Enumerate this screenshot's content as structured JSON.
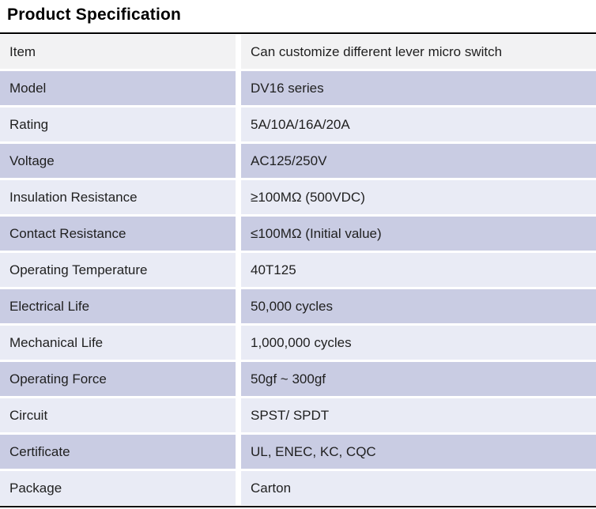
{
  "page": {
    "title": "Product Specification"
  },
  "table": {
    "columns": [
      "label",
      "value"
    ],
    "rows": [
      {
        "label": "Item",
        "value": "Can customize different lever micro switch"
      },
      {
        "label": "Model",
        "value": "DV16 series"
      },
      {
        "label": "Rating",
        "value": "5A/10A/16A/20A"
      },
      {
        "label": "Voltage",
        "value": "AC125/250V"
      },
      {
        "label": "Insulation Resistance",
        "value": "≥100MΩ (500VDC)"
      },
      {
        "label": "Contact Resistance",
        "value": "≤100MΩ (Initial value)"
      },
      {
        "label": "Operating Temperature",
        "value": "40T125"
      },
      {
        "label": "Electrical Life",
        "value": "50,000 cycles"
      },
      {
        "label": "Mechanical Life",
        "value": "1,000,000 cycles"
      },
      {
        "label": "Operating Force",
        "value": "50gf ~ 300gf"
      },
      {
        "label": "Circuit",
        "value": "SPST/ SPDT"
      },
      {
        "label": "Certificate",
        "value": "UL, ENEC, KC, CQC"
      },
      {
        "label": "Package",
        "value": "Carton"
      }
    ],
    "colors": {
      "header_row_bg": "#f2f2f3",
      "row_alt_medium": "#c9cce3",
      "row_alt_light": "#e9ebf5",
      "border": "#000000",
      "text": "#1f1f1f"
    }
  }
}
